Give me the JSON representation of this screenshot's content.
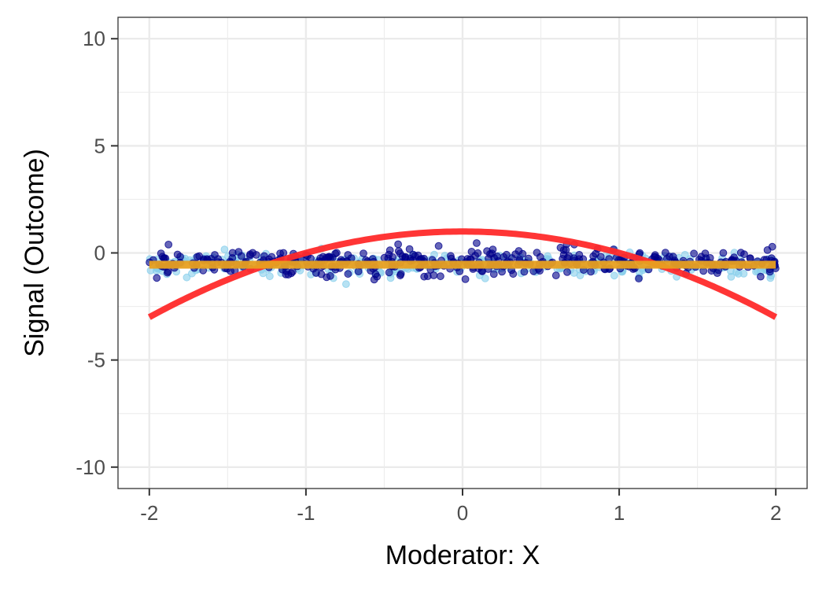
{
  "chart_data": {
    "type": "scatter",
    "title": "",
    "xlabel": "Moderator: X",
    "ylabel": "Signal (Outcome)",
    "xlim": [
      -2.2,
      2.2
    ],
    "ylim": [
      -11,
      11
    ],
    "x_ticks": [
      {
        "value": -2,
        "label": "-2"
      },
      {
        "value": -1,
        "label": "-1"
      },
      {
        "value": 0,
        "label": "0"
      },
      {
        "value": 1,
        "label": "1"
      },
      {
        "value": 2,
        "label": "2"
      }
    ],
    "y_ticks": [
      {
        "value": -10,
        "label": "-10"
      },
      {
        "value": -5,
        "label": "-5"
      },
      {
        "value": 0,
        "label": "0"
      },
      {
        "value": 5,
        "label": "5"
      },
      {
        "value": 10,
        "label": "10"
      }
    ],
    "x_minor": [
      -1.5,
      -0.5,
      0.5,
      1.5
    ],
    "y_minor": [
      -7.5,
      -2.5,
      2.5,
      7.5
    ],
    "grid": true,
    "legend": "none",
    "series": [
      {
        "kind": "points",
        "color": "#00008B",
        "opacity": 0.6,
        "x_range": [
          -2,
          2
        ],
        "count": 420,
        "center": -0.42,
        "spread": 0.32,
        "note_values": "approximately centered near -0.4 across all x"
      },
      {
        "kind": "points",
        "color": "#87CEEB",
        "opacity": 0.6,
        "x_range": [
          -2,
          2
        ],
        "count": 330,
        "center": -0.55,
        "spread": 0.28
      },
      {
        "kind": "curve",
        "color": "#FF2A2A",
        "function": "1 - x^2",
        "x": [
          -2,
          -1.5,
          -1,
          -0.5,
          0,
          0.5,
          1,
          1.5,
          2
        ],
        "y": [
          -3,
          -1.25,
          0,
          0.75,
          1,
          0.75,
          0,
          -1.25,
          -3
        ]
      },
      {
        "kind": "line",
        "color": "#E8A020",
        "x": [
          -2,
          2
        ],
        "y": [
          -0.55,
          -0.55
        ]
      }
    ]
  }
}
